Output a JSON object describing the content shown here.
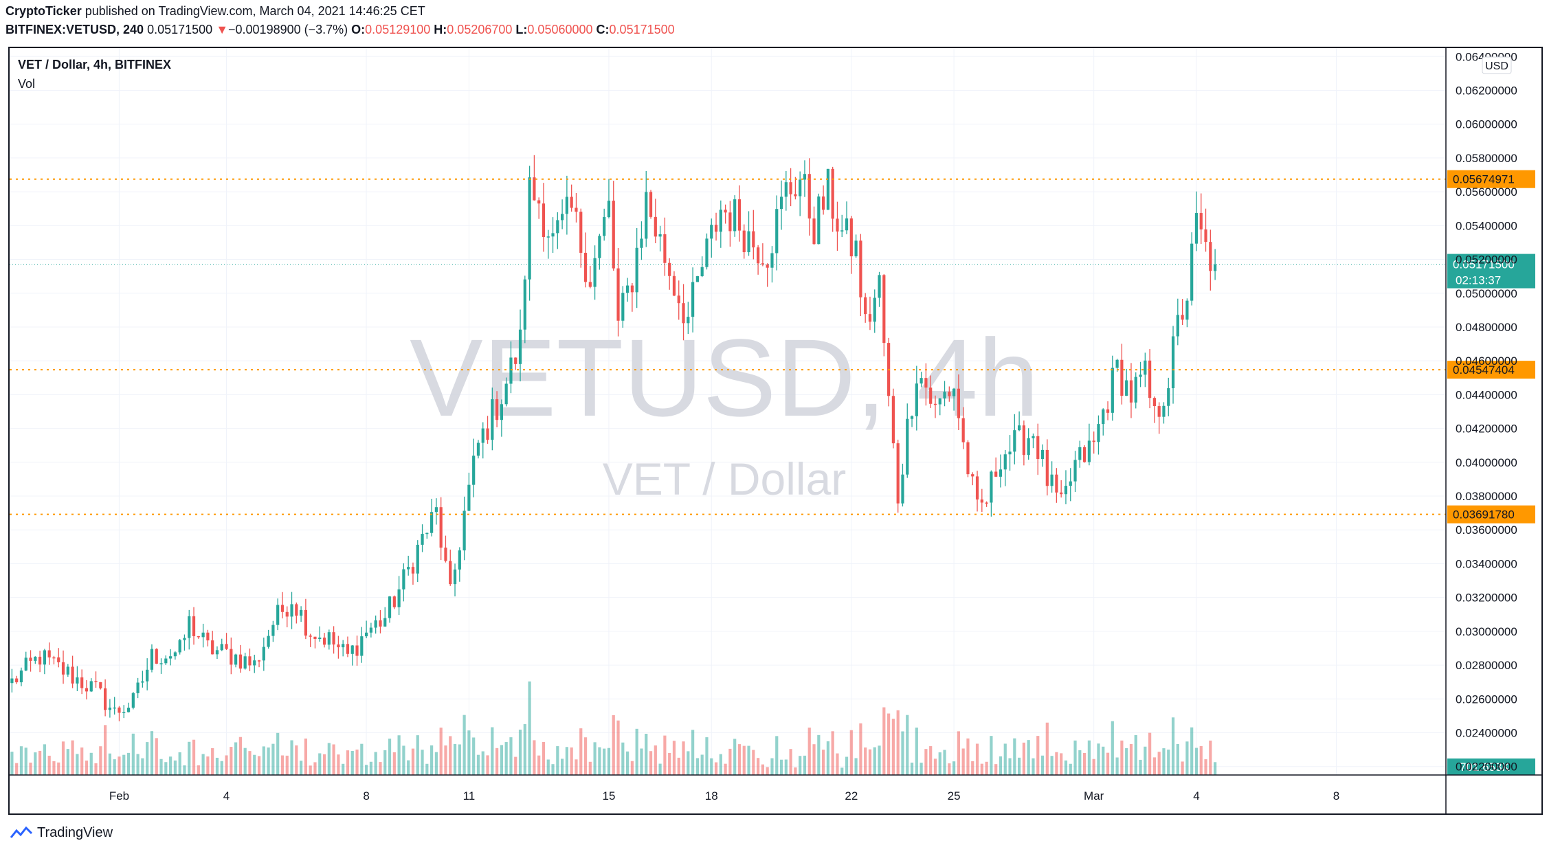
{
  "header": {
    "publisher": "CryptoTicker",
    "published_text": " published on TradingView.com, March 04, 2021 14:46:25 CET",
    "symbol": "BITFINEX:VETUSD, 240",
    "last": "0.05171500",
    "change_arrow": "▼",
    "change": "−0.00198900 (−3.7%)",
    "o_label": "O:",
    "o_value": "0.05129100",
    "h_label": "H:",
    "h_value": "0.05206700",
    "l_label": "L:",
    "l_value": "0.05060000",
    "c_label": "C:",
    "c_value": "0.05171500"
  },
  "legend": {
    "title": "VET / Dollar, 4h, BITFINEX",
    "vol": "Vol"
  },
  "watermark": {
    "main": "VETUSD, 4h",
    "sub": "VET / Dollar"
  },
  "currency_badge": "USD",
  "footer": {
    "brand": "TradingView"
  },
  "colors": {
    "up": "#26a69a",
    "down": "#ef5350",
    "level": "#ff9800",
    "axis_text": "#131722",
    "grid": "#f0f3fa"
  },
  "chart_data": {
    "type": "candlestick",
    "symbol": "VETUSD",
    "interval": "4h",
    "ylim": [
      0.0215,
      0.0645
    ],
    "y_ticks": [
      "0.02200000",
      "0.02400000",
      "0.02600000",
      "0.02800000",
      "0.03000000",
      "0.03200000",
      "0.03400000",
      "0.03600000",
      "0.03800000",
      "0.04000000",
      "0.04200000",
      "0.04400000",
      "0.04600000",
      "0.04800000",
      "0.05000000",
      "0.05200000",
      "0.05400000",
      "0.05600000",
      "0.05800000",
      "0.06000000",
      "0.06200000",
      "0.06400000"
    ],
    "x_ticks": [
      {
        "label": "Feb",
        "index": 23
      },
      {
        "label": "4",
        "index": 46
      },
      {
        "label": "8",
        "index": 76
      },
      {
        "label": "11",
        "index": 98
      },
      {
        "label": "15",
        "index": 128
      },
      {
        "label": "18",
        "index": 150
      },
      {
        "label": "22",
        "index": 180
      },
      {
        "label": "25",
        "index": 202
      },
      {
        "label": "Mar",
        "index": 232
      },
      {
        "label": "4",
        "index": 254
      },
      {
        "label": "8",
        "index": 284
      }
    ],
    "n_slots": 308,
    "horizontal_levels": [
      "0.05674971",
      "0.04547404",
      "0.03691780"
    ],
    "last_price_label": "0.05171500",
    "countdown": "02:13:37",
    "volume_label": "701.653K",
    "key_points": [
      [
        0,
        0.027
      ],
      [
        6,
        0.0285
      ],
      [
        12,
        0.0275
      ],
      [
        18,
        0.0265
      ],
      [
        22,
        0.0252
      ],
      [
        26,
        0.0258
      ],
      [
        30,
        0.0285
      ],
      [
        36,
        0.0288
      ],
      [
        38,
        0.0305
      ],
      [
        42,
        0.029
      ],
      [
        48,
        0.0285
      ],
      [
        52,
        0.028
      ],
      [
        56,
        0.0305
      ],
      [
        60,
        0.032
      ],
      [
        64,
        0.03
      ],
      [
        68,
        0.0295
      ],
      [
        72,
        0.0285
      ],
      [
        76,
        0.03
      ],
      [
        80,
        0.0308
      ],
      [
        84,
        0.033
      ],
      [
        88,
        0.0355
      ],
      [
        91,
        0.037
      ],
      [
        94,
        0.032
      ],
      [
        97,
        0.037
      ],
      [
        100,
        0.041
      ],
      [
        105,
        0.044
      ],
      [
        109,
        0.047
      ],
      [
        111,
        0.056
      ],
      [
        113,
        0.0555
      ],
      [
        116,
        0.053
      ],
      [
        120,
        0.0548
      ],
      [
        124,
        0.051
      ],
      [
        128,
        0.055
      ],
      [
        130,
        0.048
      ],
      [
        133,
        0.051
      ],
      [
        136,
        0.0555
      ],
      [
        139,
        0.053
      ],
      [
        142,
        0.0505
      ],
      [
        145,
        0.0485
      ],
      [
        148,
        0.0515
      ],
      [
        152,
        0.055
      ],
      [
        155,
        0.0545
      ],
      [
        159,
        0.053
      ],
      [
        162,
        0.0525
      ],
      [
        166,
        0.056
      ],
      [
        169,
        0.0568
      ],
      [
        172,
        0.054
      ],
      [
        175,
        0.056
      ],
      [
        178,
        0.0535
      ],
      [
        181,
        0.0525
      ],
      [
        183,
        0.048
      ],
      [
        186,
        0.0505
      ],
      [
        188,
        0.0435
      ],
      [
        190,
        0.038
      ],
      [
        192,
        0.042
      ],
      [
        194,
        0.0455
      ],
      [
        196,
        0.0445
      ],
      [
        198,
        0.043
      ],
      [
        200,
        0.044
      ],
      [
        202,
        0.0445
      ],
      [
        204,
        0.041
      ],
      [
        207,
        0.037
      ],
      [
        209,
        0.0378
      ],
      [
        212,
        0.0405
      ],
      [
        215,
        0.041
      ],
      [
        219,
        0.0418
      ],
      [
        222,
        0.039
      ],
      [
        225,
        0.0372
      ],
      [
        228,
        0.0398
      ],
      [
        232,
        0.041
      ],
      [
        234,
        0.043
      ],
      [
        237,
        0.0455
      ],
      [
        240,
        0.044
      ],
      [
        243,
        0.045
      ],
      [
        245,
        0.0425
      ],
      [
        248,
        0.045
      ],
      [
        250,
        0.048
      ],
      [
        252,
        0.05
      ],
      [
        254,
        0.054
      ],
      [
        256,
        0.0525
      ],
      [
        258,
        0.0517
      ]
    ]
  }
}
